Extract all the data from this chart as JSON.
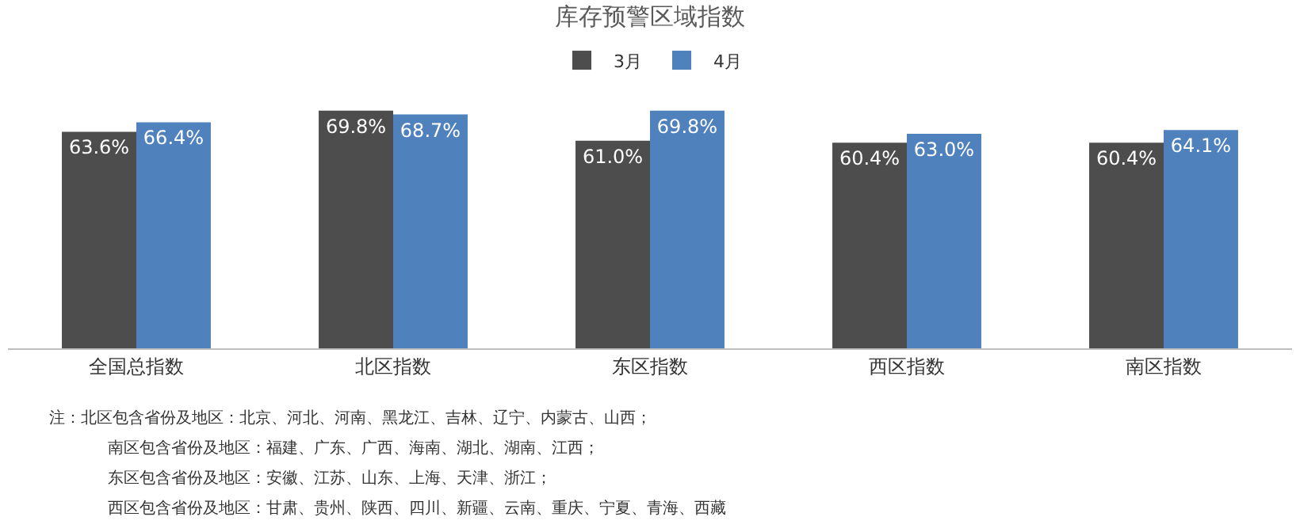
{
  "chart_data": {
    "type": "bar",
    "title": "库存预警区域指数",
    "categories": [
      "全国总指数",
      "北区指数",
      "东区指数",
      "西区指数",
      "南区指数"
    ],
    "series": [
      {
        "name": "3月",
        "color": "#4d4d4d",
        "values": [
          63.6,
          69.8,
          61.0,
          60.4,
          60.4
        ],
        "value_labels": [
          "63.6%",
          "69.8%",
          "61.0%",
          "60.4%",
          "60.4%"
        ]
      },
      {
        "name": "4月",
        "color": "#4f81bd",
        "values": [
          66.4,
          68.7,
          69.8,
          63.0,
          64.1
        ],
        "value_labels": [
          "66.4%",
          "68.7%",
          "69.8%",
          "63.0%",
          "64.1%"
        ]
      }
    ],
    "legend": "top",
    "annotations": [
      "注：北区包含省份及地区：北京、河北、河南、黑龙江、吉林、辽宁、内蒙古、山西；",
      "南区包含省份及地区：福建、广东、广西、海南、湖北、湖南、江西；",
      "东区包含省份及地区：安徽、江苏、山东、上海、天津、浙江；",
      "西区包含省份及地区：甘肃、贵州、陕西、四川、新疆、云南、重庆、宁夏、青海、西藏"
    ]
  }
}
